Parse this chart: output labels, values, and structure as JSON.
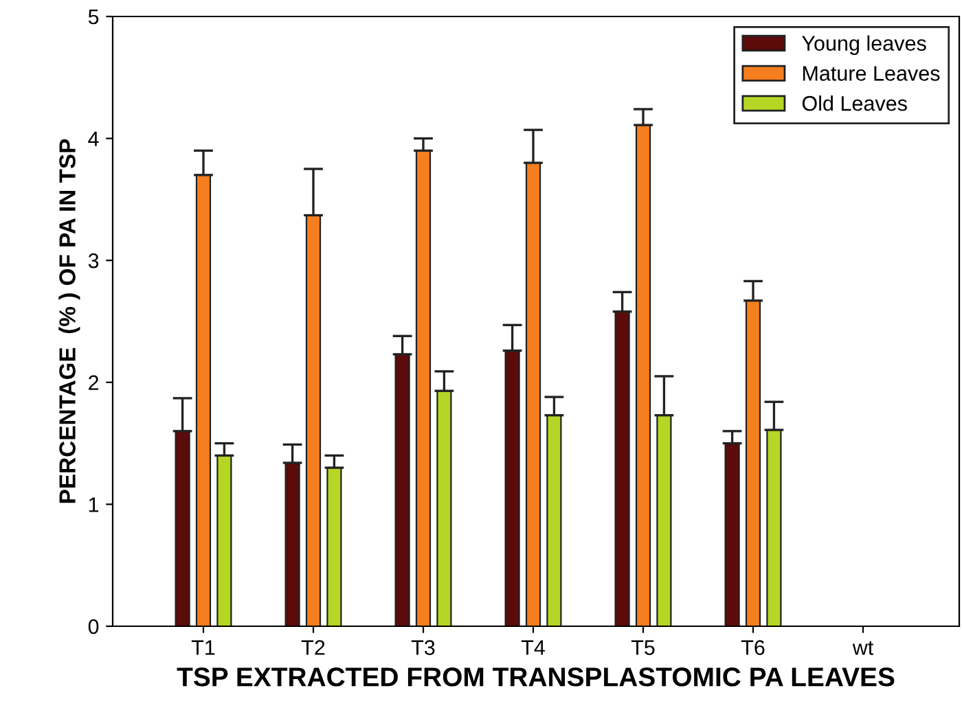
{
  "chart_data": {
    "type": "bar",
    "xlabel": "TSP EXTRACTED FROM TRANSPLASTOMIC PA LEAVES",
    "ylabel": "PERCENTAGE  (% ) OF PA IN TSP",
    "categories": [
      "T1",
      "T2",
      "T3",
      "T4",
      "T5",
      "T6",
      "wt"
    ],
    "series": [
      {
        "name": "Young leaves",
        "color": "#5c0a0a",
        "values": [
          1.6,
          1.34,
          2.23,
          2.26,
          2.58,
          1.5,
          null
        ],
        "errors": [
          [
            1.6,
            1.87
          ],
          [
            1.34,
            1.49
          ],
          [
            2.23,
            2.38
          ],
          [
            2.26,
            2.47
          ],
          [
            2.58,
            2.74
          ],
          [
            1.5,
            1.6
          ],
          null
        ]
      },
      {
        "name": "Mature Leaves",
        "color": "#f57f1f",
        "values": [
          3.7,
          3.37,
          3.9,
          3.8,
          4.11,
          2.67,
          null
        ],
        "errors": [
          [
            3.7,
            3.9
          ],
          [
            3.37,
            3.75
          ],
          [
            3.9,
            4.0
          ],
          [
            3.8,
            4.07
          ],
          [
            4.11,
            4.24
          ],
          [
            2.67,
            2.83
          ],
          null
        ]
      },
      {
        "name": "Old Leaves",
        "color": "#b5d624",
        "values": [
          1.4,
          1.3,
          1.93,
          1.73,
          1.73,
          1.61,
          null
        ],
        "errors": [
          [
            1.4,
            1.5
          ],
          [
            1.3,
            1.4
          ],
          [
            1.93,
            2.09
          ],
          [
            1.73,
            1.88
          ],
          [
            1.73,
            2.05
          ],
          [
            1.61,
            1.84
          ],
          null
        ]
      }
    ],
    "ylim": [
      0,
      5
    ],
    "yticks": [
      0,
      1,
      2,
      3,
      4,
      5
    ],
    "grid": false,
    "legend": "top right"
  }
}
